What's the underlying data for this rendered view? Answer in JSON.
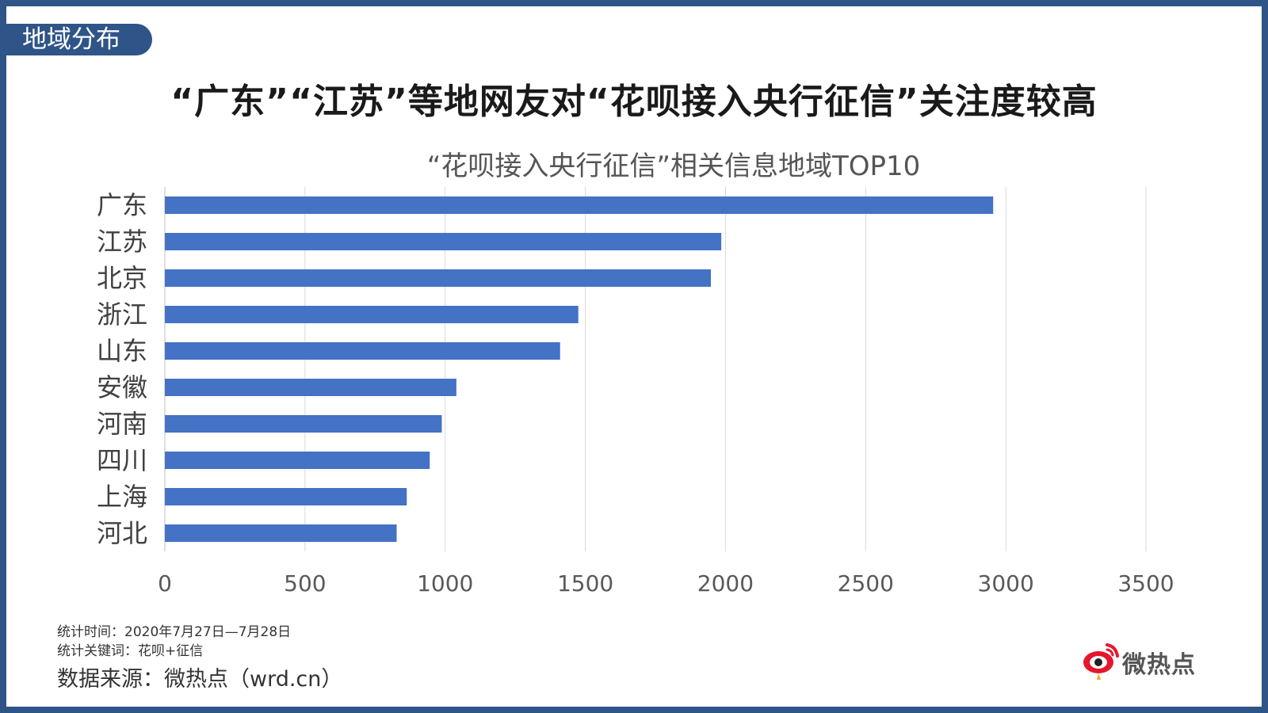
{
  "section_tag": "地域分布",
  "headline": "“广东”“江苏”等地网友对“花呗接入央行征信”关注度较高",
  "colors": {
    "frame": "#2f5487",
    "bar": "#4472c4",
    "grid": "#d9d9d9"
  },
  "chart_data": {
    "type": "bar",
    "orientation": "horizontal",
    "title": "“花呗接入央行征信”相关信息地域TOP10",
    "categories": [
      "广东",
      "江苏",
      "北京",
      "浙江",
      "山东",
      "安徽",
      "河南",
      "四川",
      "上海",
      "河北"
    ],
    "values": [
      2955,
      1985,
      1948,
      1475,
      1410,
      1040,
      988,
      945,
      863,
      827
    ],
    "xlim": [
      0,
      3500
    ],
    "xticks": [
      "0",
      "500",
      "1000",
      "1500",
      "2000",
      "2500",
      "3000",
      "3500"
    ],
    "grid": true,
    "legend": "none"
  },
  "footer": {
    "stat_time": "统计时间：2020年7月27日—7月28日",
    "stat_keywords": "统计关键词：花呗+征信",
    "source": "数据来源：微热点（wrd.cn）"
  },
  "logo": {
    "text": "微热点",
    "icon": "weibo-eye-logo-icon"
  }
}
